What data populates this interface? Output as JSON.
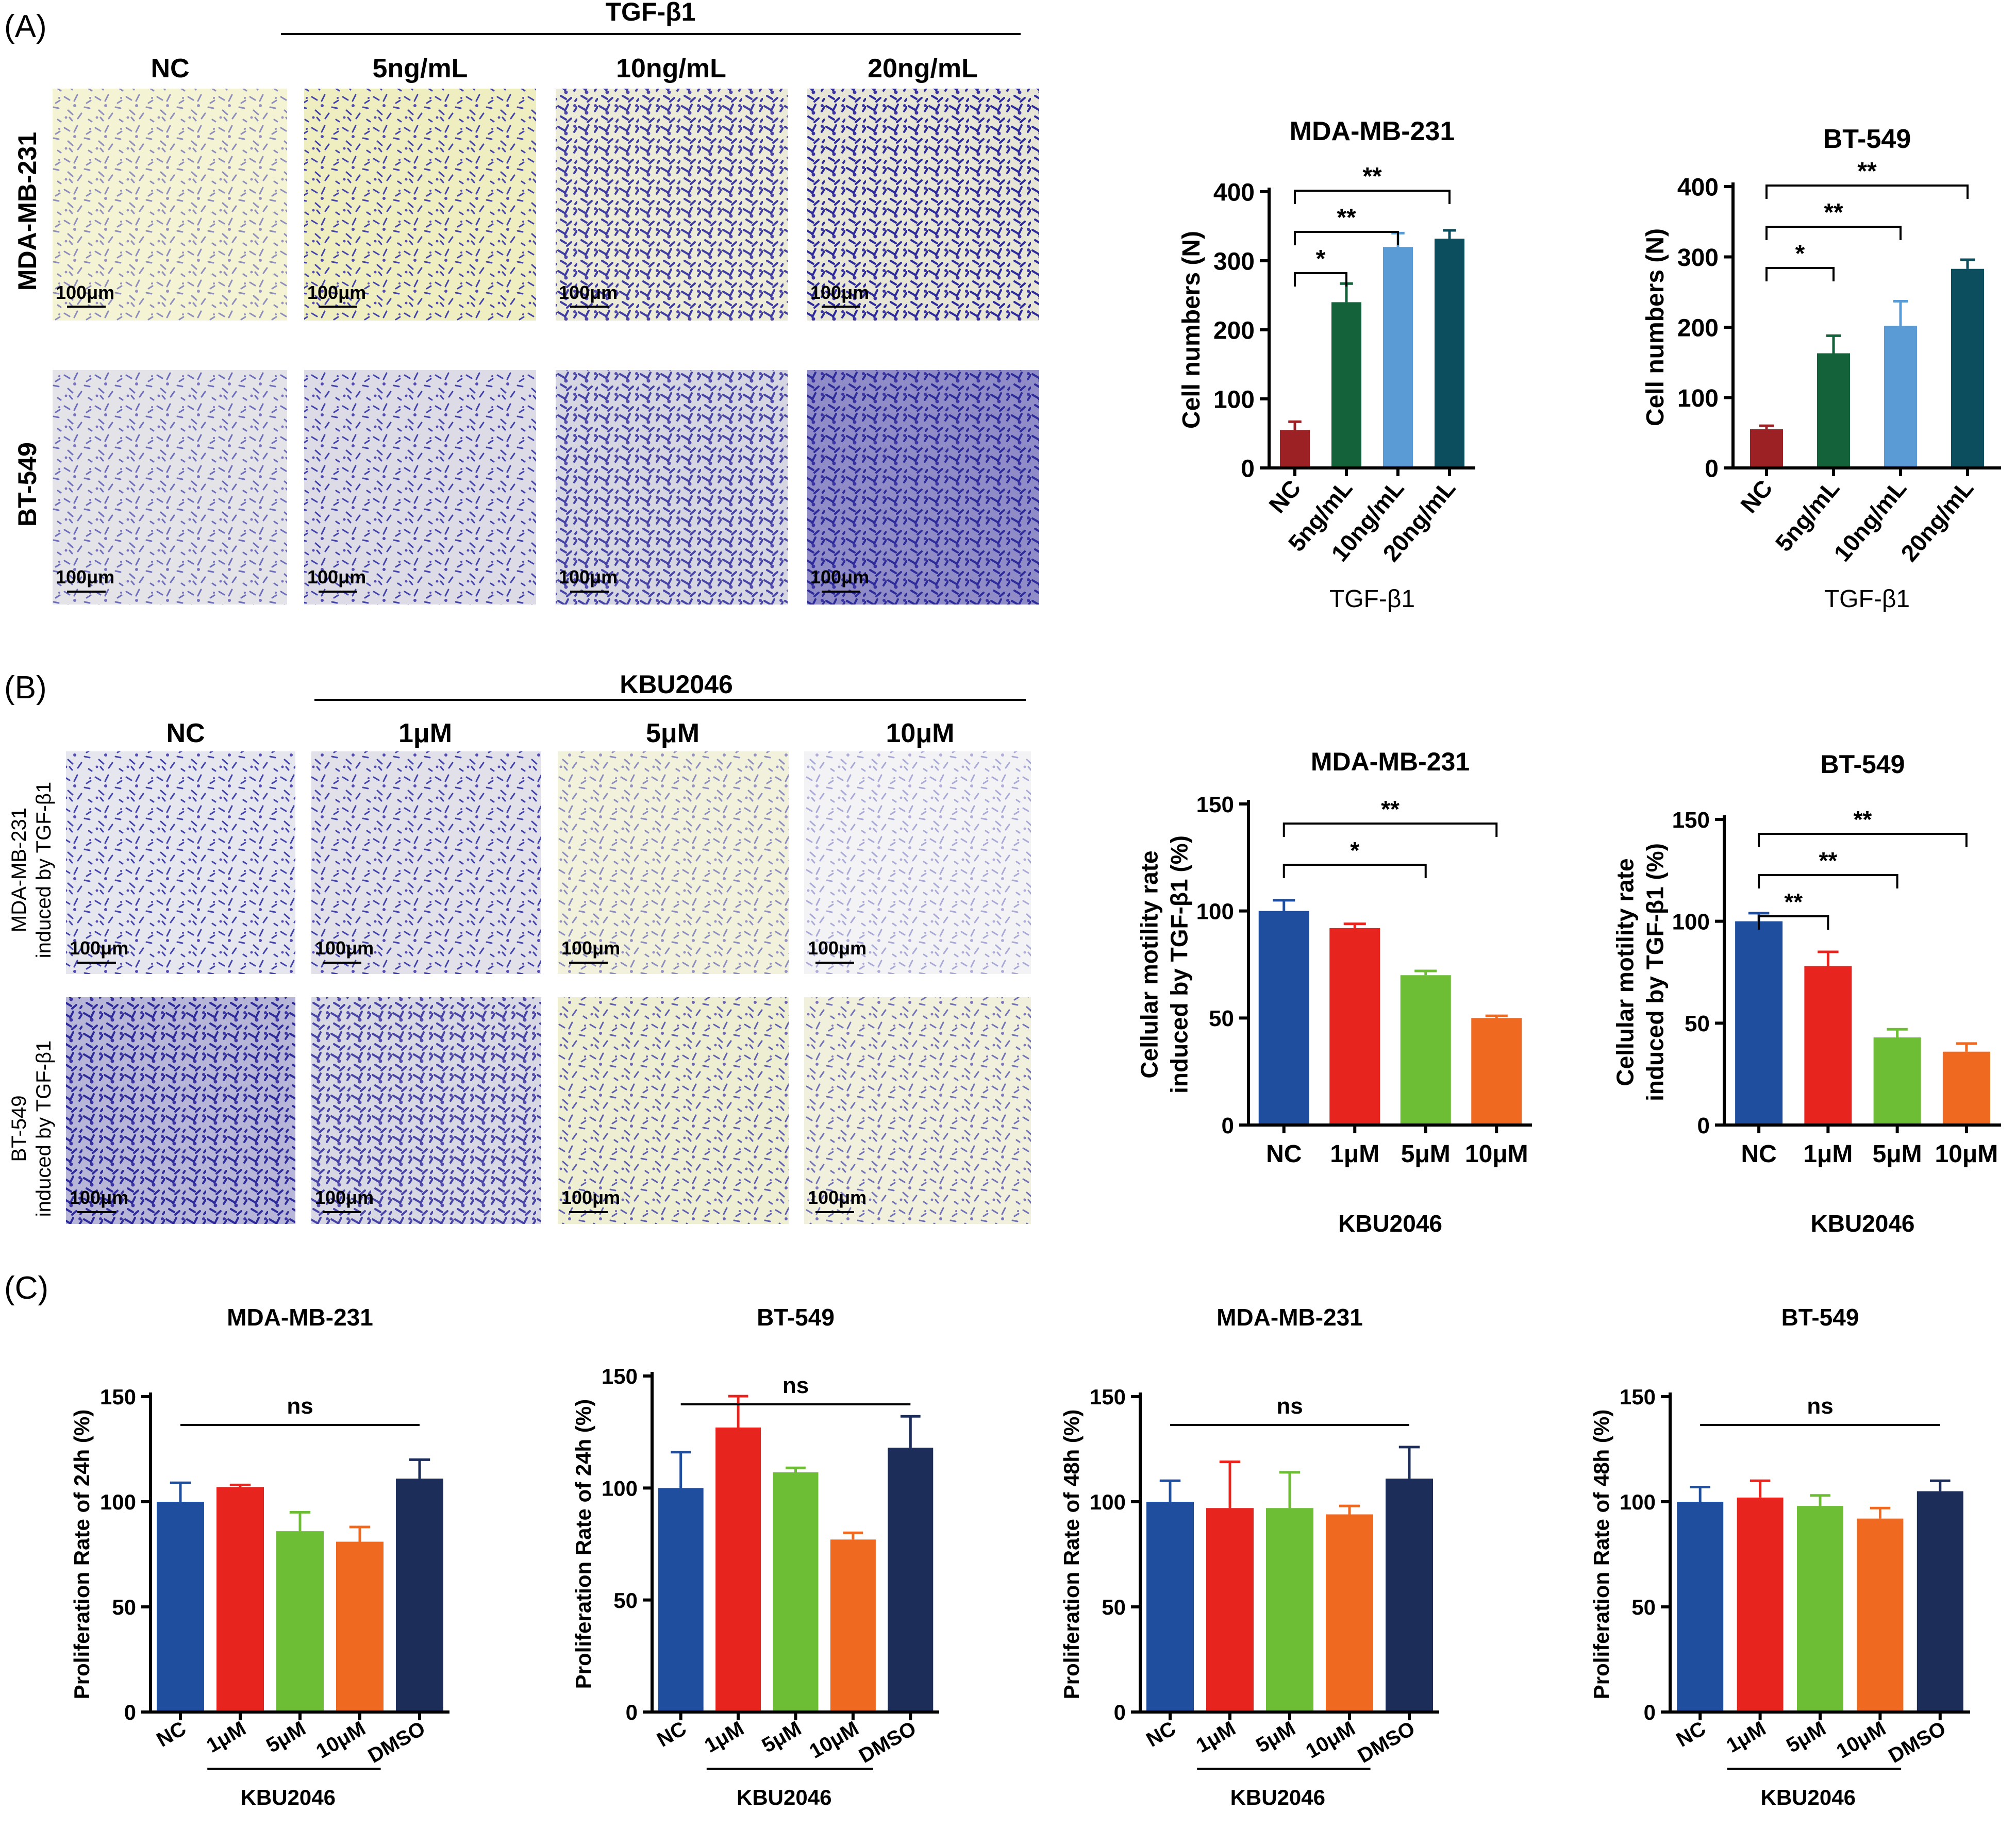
{
  "figure": {
    "panel_labels": [
      "(A)",
      "(B)",
      "(C)"
    ],
    "scale_bar_label": "100μm",
    "panelA": {
      "treatment_label": "TGF-β1",
      "column_labels": [
        "NC",
        "5ng/mL",
        "10ng/mL",
        "20ng/mL"
      ],
      "row_labels": [
        "MDA-MB-231",
        "BT-549"
      ]
    },
    "panelB": {
      "treatment_label": "KBU2046",
      "column_labels": [
        "NC",
        "1μM",
        "5μM",
        "10μM"
      ],
      "row_labels": [
        [
          "MDA-MB-231",
          "induced by TGF-β1"
        ],
        [
          "BT-549",
          "induced by TGF-β1"
        ]
      ]
    }
  },
  "colors": {
    "nc_red": "#9B2125",
    "dark_green": "#13623A",
    "light_blue": "#5B9BD5",
    "teal": "#0C4E5E",
    "blue": "#1F4E9E",
    "red": "#E8241F",
    "green": "#6DBE35",
    "orange": "#EF6A20",
    "navy": "#1D2D5A"
  },
  "chart_data": [
    {
      "type": "bar",
      "title": "MDA-MB-231",
      "categories": [
        "NC",
        "5ng/mL",
        "10ng/mL",
        "20ng/mL"
      ],
      "values": [
        55,
        240,
        320,
        332
      ],
      "errors": [
        12,
        27,
        20,
        12
      ],
      "colors": [
        "#9B2125",
        "#13623A",
        "#5B9BD5",
        "#0C4E5E"
      ],
      "xlabel": "TGF-β1",
      "ylabel": "Cell numbers  (N)",
      "ylim": [
        0,
        400
      ],
      "yticks": [
        0,
        100,
        200,
        300,
        400
      ],
      "significance": [
        {
          "from": 0,
          "to": 1,
          "label": "*"
        },
        {
          "from": 0,
          "to": 2,
          "label": "**"
        },
        {
          "from": 0,
          "to": 3,
          "label": "**"
        }
      ]
    },
    {
      "type": "bar",
      "title": "BT-549",
      "categories": [
        "NC",
        "5ng/mL",
        "10ng/mL",
        "20ng/mL"
      ],
      "values": [
        55,
        163,
        202,
        283
      ],
      "errors": [
        5,
        25,
        35,
        13
      ],
      "colors": [
        "#9B2125",
        "#13623A",
        "#5B9BD5",
        "#0C4E5E"
      ],
      "xlabel": "TGF-β1",
      "ylabel": "Cell numbers  (N)",
      "ylim": [
        0,
        400
      ],
      "yticks": [
        0,
        100,
        200,
        300,
        400
      ],
      "significance": [
        {
          "from": 0,
          "to": 1,
          "label": "*"
        },
        {
          "from": 0,
          "to": 2,
          "label": "**"
        },
        {
          "from": 0,
          "to": 3,
          "label": "**"
        }
      ]
    },
    {
      "type": "bar",
      "title": "MDA-MB-231",
      "categories": [
        "NC",
        "1μM",
        "5μM",
        "10μM"
      ],
      "values": [
        100,
        92,
        70,
        50
      ],
      "errors": [
        5,
        2,
        2,
        1
      ],
      "colors": [
        "#1F4E9E",
        "#E8241F",
        "#6DBE35",
        "#EF6A20"
      ],
      "xlabel": "KBU2046",
      "ylabel": [
        "Cellular motility rate",
        "induced by TGF-β1  (%)"
      ],
      "ylim": [
        0,
        150
      ],
      "yticks": [
        0,
        50,
        100,
        150
      ],
      "significance": [
        {
          "from": 0,
          "to": 2,
          "label": "*"
        },
        {
          "from": 0,
          "to": 3,
          "label": "**"
        }
      ]
    },
    {
      "type": "bar",
      "title": "BT-549",
      "categories": [
        "NC",
        "1μM",
        "5μM",
        "10μM"
      ],
      "values": [
        100,
        78,
        43,
        36
      ],
      "errors": [
        4,
        7,
        4,
        4
      ],
      "colors": [
        "#1F4E9E",
        "#E8241F",
        "#6DBE35",
        "#EF6A20"
      ],
      "xlabel": "KBU2046",
      "ylabel": [
        "Cellular motility rate",
        "induced by TGF-β1  (%)"
      ],
      "ylim": [
        0,
        150
      ],
      "yticks": [
        0,
        50,
        100,
        150
      ],
      "significance": [
        {
          "from": 0,
          "to": 1,
          "label": "**"
        },
        {
          "from": 0,
          "to": 2,
          "label": "**"
        },
        {
          "from": 0,
          "to": 3,
          "label": "**"
        }
      ]
    },
    {
      "type": "bar",
      "title": "MDA-MB-231",
      "categories": [
        "NC",
        "1μM",
        "5μM",
        "10μM",
        "DMSO"
      ],
      "values": [
        100,
        107,
        86,
        81,
        111
      ],
      "errors": [
        9,
        1,
        9,
        7,
        9
      ],
      "colors": [
        "#1F4E9E",
        "#E8241F",
        "#6DBE35",
        "#EF6A20",
        "#1D2D5A"
      ],
      "group_label": "KBU2046",
      "ylabel": "Proliferation Rate of 24h  (%)",
      "ylim": [
        0,
        150
      ],
      "yticks": [
        0,
        50,
        100,
        150
      ],
      "significance": [
        {
          "from": 0,
          "to": 4,
          "label": "ns"
        }
      ]
    },
    {
      "type": "bar",
      "title": "BT-549",
      "categories": [
        "NC",
        "1μM",
        "5μM",
        "10μM",
        "DMSO"
      ],
      "values": [
        100,
        127,
        107,
        77,
        118
      ],
      "errors": [
        16,
        14,
        2,
        3,
        14
      ],
      "colors": [
        "#1F4E9E",
        "#E8241F",
        "#6DBE35",
        "#EF6A20",
        "#1D2D5A"
      ],
      "group_label": "KBU2046",
      "ylabel": "Proliferation Rate of 24h  (%)",
      "ylim": [
        0,
        150
      ],
      "yticks": [
        0,
        50,
        100,
        150
      ],
      "significance": [
        {
          "from": 0,
          "to": 4,
          "label": "ns"
        }
      ]
    },
    {
      "type": "bar",
      "title": "MDA-MB-231",
      "categories": [
        "NC",
        "1μM",
        "5μM",
        "10μM",
        "DMSO"
      ],
      "values": [
        100,
        97,
        97,
        94,
        111
      ],
      "errors": [
        10,
        22,
        17,
        4,
        15
      ],
      "colors": [
        "#1F4E9E",
        "#E8241F",
        "#6DBE35",
        "#EF6A20",
        "#1D2D5A"
      ],
      "group_label": "KBU2046",
      "ylabel": "Proliferation Rate of 48h  (%)",
      "ylim": [
        0,
        150
      ],
      "yticks": [
        0,
        50,
        100,
        150
      ],
      "significance": [
        {
          "from": 0,
          "to": 4,
          "label": "ns"
        }
      ]
    },
    {
      "type": "bar",
      "title": "BT-549",
      "categories": [
        "NC",
        "1μM",
        "5μM",
        "10μM",
        "DMSO"
      ],
      "values": [
        100,
        102,
        98,
        92,
        105
      ],
      "errors": [
        7,
        8,
        5,
        5,
        5
      ],
      "colors": [
        "#1F4E9E",
        "#E8241F",
        "#6DBE35",
        "#EF6A20",
        "#1D2D5A"
      ],
      "group_label": "KBU2046",
      "ylabel": "Proliferation Rate of 48h  (%)",
      "ylim": [
        0,
        150
      ],
      "yticks": [
        0,
        50,
        100,
        150
      ],
      "significance": [
        {
          "from": 0,
          "to": 4,
          "label": "ns"
        }
      ]
    }
  ]
}
